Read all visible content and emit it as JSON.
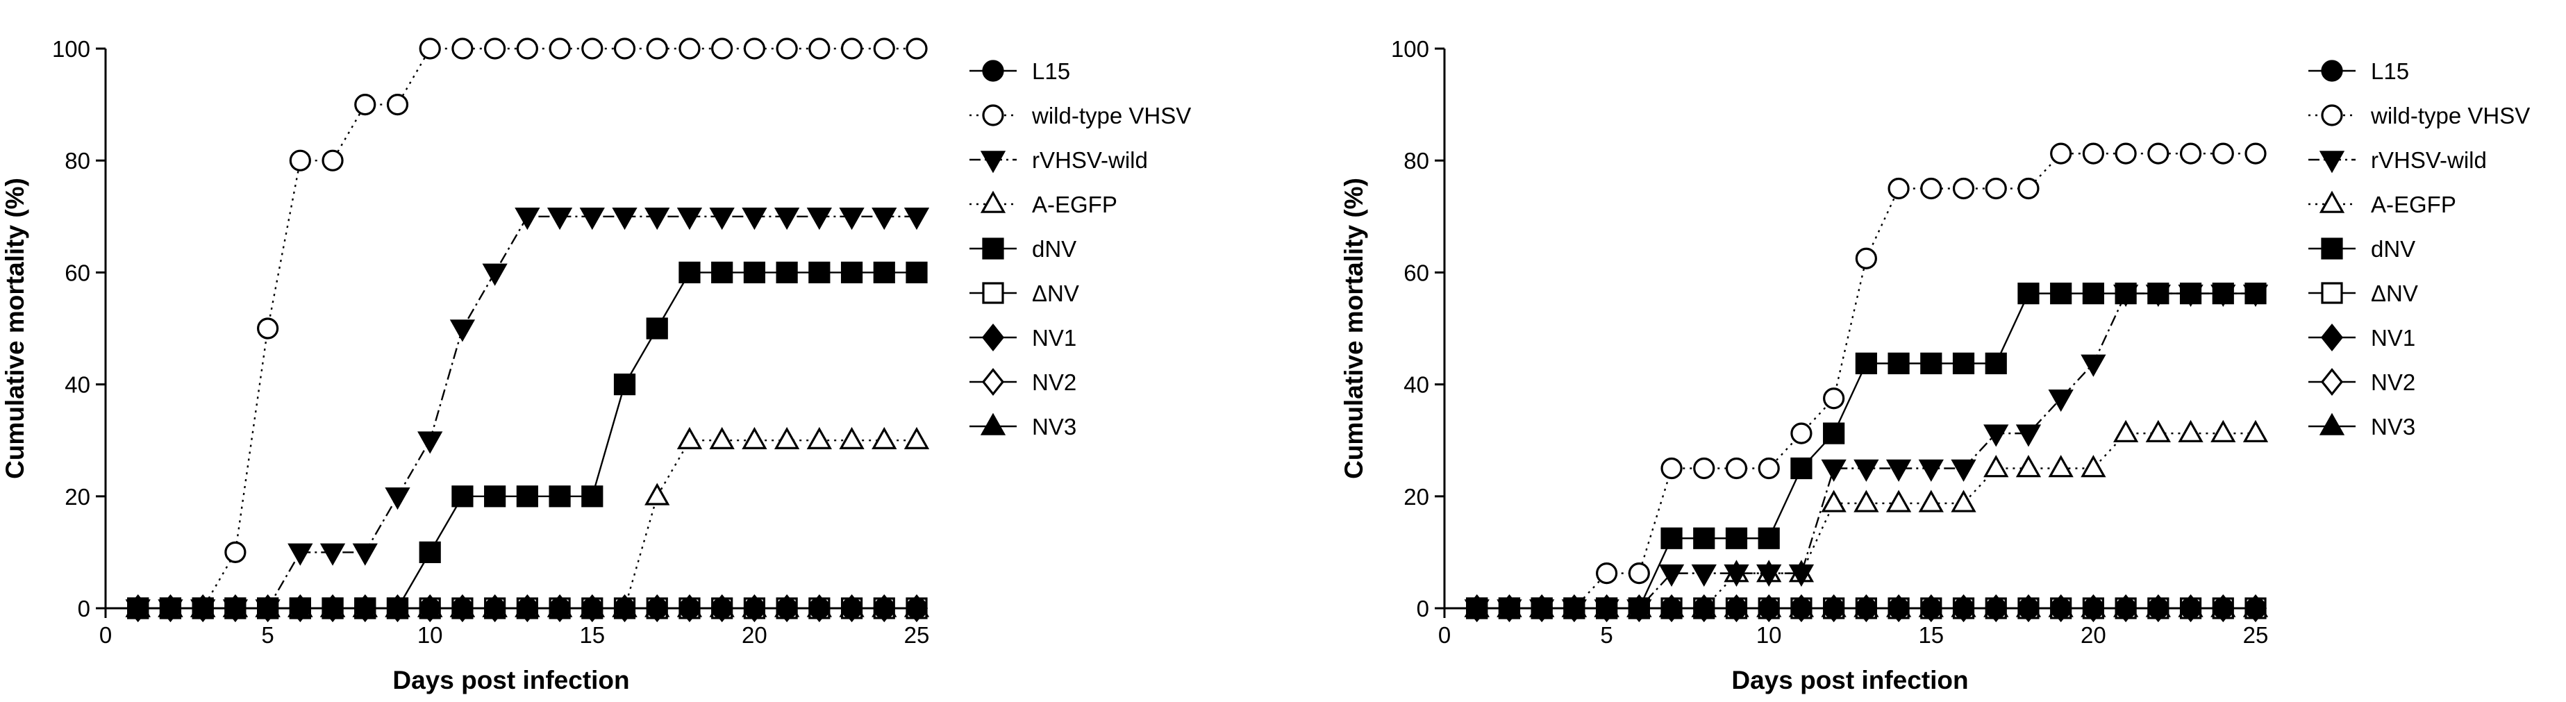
{
  "chart_data": [
    {
      "type": "line",
      "xlabel": "Days post infection",
      "ylabel": "Cumulative mortality (%)",
      "xlim": [
        0,
        25
      ],
      "ylim": [
        0,
        100
      ],
      "xticks": [
        0,
        5,
        10,
        15,
        20,
        25
      ],
      "yticks": [
        0,
        20,
        40,
        60,
        80,
        100
      ],
      "grid": false,
      "legend_position": "right",
      "x": [
        1,
        2,
        3,
        4,
        5,
        6,
        7,
        8,
        9,
        10,
        11,
        12,
        13,
        14,
        15,
        16,
        17,
        18,
        19,
        20,
        21,
        22,
        23,
        24,
        25
      ],
      "series": [
        {
          "name": "L15",
          "marker": "circle",
          "filled": true,
          "line": "solid",
          "values": [
            0,
            0,
            0,
            0,
            0,
            0,
            0,
            0,
            0,
            0,
            0,
            0,
            0,
            0,
            0,
            0,
            0,
            0,
            0,
            0,
            0,
            0,
            0,
            0,
            0
          ]
        },
        {
          "name": "wild-type VHSV",
          "marker": "circle",
          "filled": false,
          "line": "dotted",
          "values": [
            0,
            0,
            0,
            10,
            50,
            80,
            80,
            90,
            90,
            100,
            100,
            100,
            100,
            100,
            100,
            100,
            100,
            100,
            100,
            100,
            100,
            100,
            100,
            100,
            100
          ]
        },
        {
          "name": "rVHSV-wild",
          "marker": "triangle-down",
          "filled": true,
          "line": "dashdot",
          "values": [
            0,
            0,
            0,
            0,
            0,
            10,
            10,
            10,
            20,
            30,
            50,
            60,
            70,
            70,
            70,
            70,
            70,
            70,
            70,
            70,
            70,
            70,
            70,
            70,
            70
          ]
        },
        {
          "name": "A-EGFP",
          "marker": "triangle-up",
          "filled": false,
          "line": "dotted",
          "values": [
            0,
            0,
            0,
            0,
            0,
            0,
            0,
            0,
            0,
            0,
            0,
            0,
            0,
            0,
            0,
            0,
            20,
            30,
            30,
            30,
            30,
            30,
            30,
            30,
            30
          ]
        },
        {
          "name": "dNV",
          "marker": "square",
          "filled": true,
          "line": "solid",
          "values": [
            0,
            0,
            0,
            0,
            0,
            0,
            0,
            0,
            0,
            10,
            20,
            20,
            20,
            20,
            20,
            40,
            50,
            60,
            60,
            60,
            60,
            60,
            60,
            60,
            60
          ]
        },
        {
          "name": "ΔNV",
          "marker": "square",
          "filled": false,
          "line": "solid",
          "values": [
            0,
            0,
            0,
            0,
            0,
            0,
            0,
            0,
            0,
            0,
            0,
            0,
            0,
            0,
            0,
            0,
            0,
            0,
            0,
            0,
            0,
            0,
            0,
            0,
            0
          ]
        },
        {
          "name": "NV1",
          "marker": "diamond",
          "filled": true,
          "line": "solid",
          "values": [
            0,
            0,
            0,
            0,
            0,
            0,
            0,
            0,
            0,
            0,
            0,
            0,
            0,
            0,
            0,
            0,
            0,
            0,
            0,
            0,
            0,
            0,
            0,
            0,
            0
          ]
        },
        {
          "name": "NV2",
          "marker": "diamond",
          "filled": false,
          "line": "solid",
          "values": [
            0,
            0,
            0,
            0,
            0,
            0,
            0,
            0,
            0,
            0,
            0,
            0,
            0,
            0,
            0,
            0,
            0,
            0,
            0,
            0,
            0,
            0,
            0,
            0,
            0
          ]
        },
        {
          "name": "NV3",
          "marker": "triangle-up",
          "filled": true,
          "line": "solid",
          "values": [
            0,
            0,
            0,
            0,
            0,
            0,
            0,
            0,
            0,
            0,
            0,
            0,
            0,
            0,
            0,
            0,
            0,
            0,
            0,
            0,
            0,
            0,
            0,
            0,
            0
          ]
        }
      ]
    },
    {
      "type": "line",
      "xlabel": "Days post infection",
      "ylabel": "Cumulative mortality (%)",
      "xlim": [
        0,
        25
      ],
      "ylim": [
        0,
        100
      ],
      "xticks": [
        0,
        5,
        10,
        15,
        20,
        25
      ],
      "yticks": [
        0,
        20,
        40,
        60,
        80,
        100
      ],
      "grid": false,
      "legend_position": "right",
      "x": [
        1,
        2,
        3,
        4,
        5,
        6,
        7,
        8,
        9,
        10,
        11,
        12,
        13,
        14,
        15,
        16,
        17,
        18,
        19,
        20,
        21,
        22,
        23,
        24,
        25
      ],
      "series": [
        {
          "name": "L15",
          "marker": "circle",
          "filled": true,
          "line": "solid",
          "values": [
            0,
            0,
            0,
            0,
            0,
            0,
            0,
            0,
            0,
            0,
            0,
            0,
            0,
            0,
            0,
            0,
            0,
            0,
            0,
            0,
            0,
            0,
            0,
            0,
            0
          ]
        },
        {
          "name": "wild-type VHSV",
          "marker": "circle",
          "filled": false,
          "line": "dotted",
          "values": [
            0,
            0,
            0,
            0,
            6.25,
            6.25,
            25,
            25,
            25,
            25,
            31.25,
            37.5,
            62.5,
            75,
            75,
            75,
            75,
            75,
            81.25,
            81.25,
            81.25,
            81.25,
            81.25,
            81.25,
            81.25
          ]
        },
        {
          "name": "rVHSV-wild",
          "marker": "triangle-down",
          "filled": true,
          "line": "dashdot",
          "values": [
            0,
            0,
            0,
            0,
            0,
            0,
            6.25,
            6.25,
            6.25,
            6.25,
            6.25,
            25,
            25,
            25,
            25,
            25,
            31.25,
            31.25,
            37.5,
            43.75,
            56.25,
            56.25,
            56.25,
            56.25,
            56.25
          ]
        },
        {
          "name": "A-EGFP",
          "marker": "triangle-up",
          "filled": false,
          "line": "dotted",
          "values": [
            0,
            0,
            0,
            0,
            0,
            0,
            0,
            0,
            6.25,
            6.25,
            6.25,
            18.75,
            18.75,
            18.75,
            18.75,
            18.75,
            25,
            25,
            25,
            25,
            31.25,
            31.25,
            31.25,
            31.25,
            31.25
          ]
        },
        {
          "name": "dNV",
          "marker": "square",
          "filled": true,
          "line": "solid",
          "values": [
            0,
            0,
            0,
            0,
            0,
            0,
            12.5,
            12.5,
            12.5,
            12.5,
            25,
            31.25,
            43.75,
            43.75,
            43.75,
            43.75,
            43.75,
            56.25,
            56.25,
            56.25,
            56.25,
            56.25,
            56.25,
            56.25,
            56.25
          ]
        },
        {
          "name": "ΔNV",
          "marker": "square",
          "filled": false,
          "line": "solid",
          "values": [
            0,
            0,
            0,
            0,
            0,
            0,
            0,
            0,
            0,
            0,
            0,
            0,
            0,
            0,
            0,
            0,
            0,
            0,
            0,
            0,
            0,
            0,
            0,
            0,
            0
          ]
        },
        {
          "name": "NV1",
          "marker": "diamond",
          "filled": true,
          "line": "solid",
          "values": [
            0,
            0,
            0,
            0,
            0,
            0,
            0,
            0,
            0,
            0,
            0,
            0,
            0,
            0,
            0,
            0,
            0,
            0,
            0,
            0,
            0,
            0,
            0,
            0,
            0
          ]
        },
        {
          "name": "NV2",
          "marker": "diamond",
          "filled": false,
          "line": "solid",
          "values": [
            0,
            0,
            0,
            0,
            0,
            0,
            0,
            0,
            0,
            0,
            0,
            0,
            0,
            0,
            0,
            0,
            0,
            0,
            0,
            0,
            0,
            0,
            0,
            0,
            0
          ]
        },
        {
          "name": "NV3",
          "marker": "triangle-up",
          "filled": true,
          "line": "solid",
          "values": [
            0,
            0,
            0,
            0,
            0,
            0,
            0,
            0,
            0,
            0,
            0,
            0,
            0,
            0,
            0,
            0,
            0,
            0,
            0,
            0,
            0,
            0,
            0,
            0,
            0
          ]
        }
      ]
    }
  ]
}
